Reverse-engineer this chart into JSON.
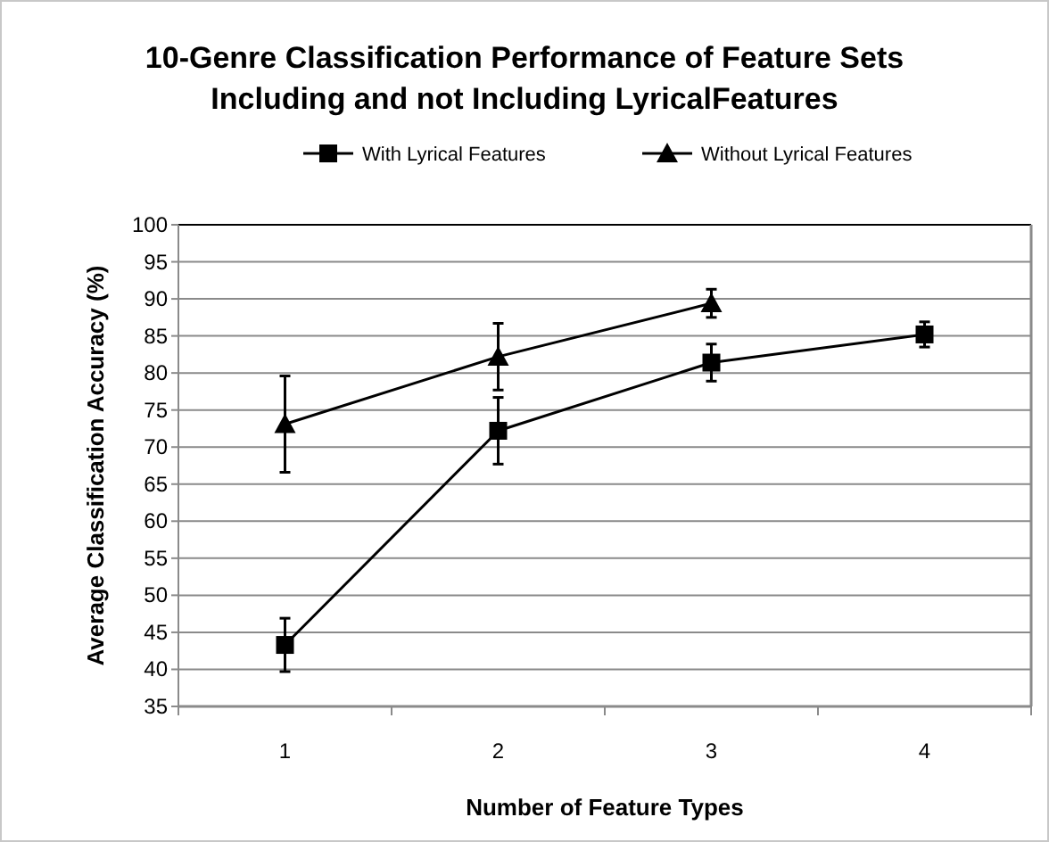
{
  "chart_data": {
    "type": "line",
    "title": "10-Genre Classification Performance of Feature Sets\nIncluding and not Including LyricalFeatures",
    "xlabel": "Number of Feature Types",
    "ylabel": "Average Classification Accuracy (%)",
    "categories": [
      "1",
      "2",
      "3",
      "4"
    ],
    "series": [
      {
        "name": "With Lyrical Features",
        "color": "#000000",
        "marker": "square",
        "values": [
          43.3,
          72.2,
          81.4,
          85.2
        ],
        "errors": [
          3.6,
          4.5,
          2.5,
          1.7
        ]
      },
      {
        "name": "Without Lyrical Features",
        "color": "#000000",
        "marker": "triangle",
        "values": [
          73.1,
          82.2,
          89.4,
          null
        ],
        "errors": [
          6.5,
          4.5,
          1.9,
          null
        ]
      }
    ],
    "ylim": [
      35,
      100
    ],
    "yticks": [
      35,
      40,
      45,
      50,
      55,
      60,
      65,
      70,
      75,
      80,
      85,
      90,
      95,
      100
    ],
    "grid": "y",
    "legend": "top",
    "line_style": "solid"
  }
}
